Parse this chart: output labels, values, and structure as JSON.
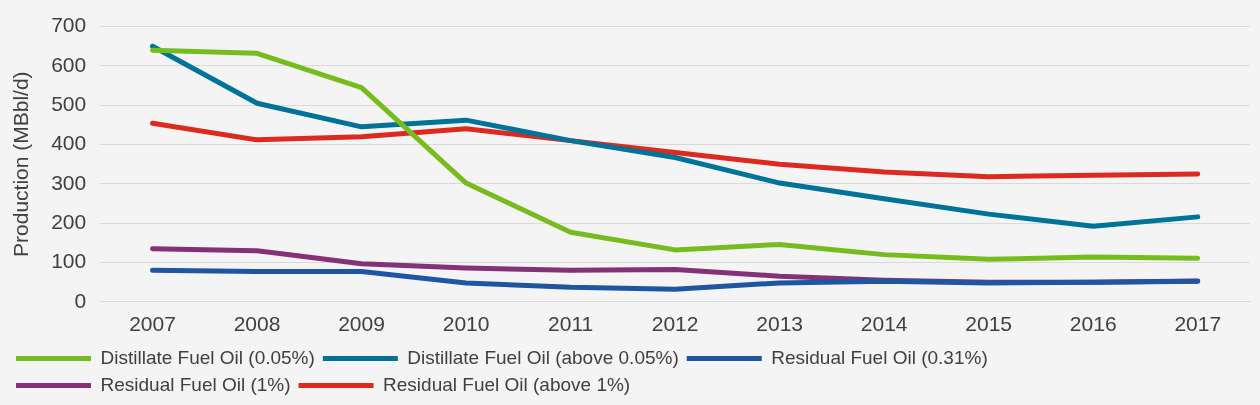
{
  "chart_data": {
    "type": "line",
    "ylabel": "Production (MBbl/d)",
    "categories": [
      "2007",
      "2008",
      "2009",
      "2010",
      "2011",
      "2012",
      "2013",
      "2014",
      "2015",
      "2016",
      "2017"
    ],
    "series": [
      {
        "name": "Distillate Fuel Oil (0.05%)",
        "color": "#77bc1f",
        "values": [
          640,
          632,
          545,
          302,
          177,
          132,
          146,
          120,
          108,
          114,
          111
        ]
      },
      {
        "name": "Distillate Fuel Oil (above 0.05%)",
        "color": "#00739a",
        "values": [
          650,
          505,
          445,
          462,
          410,
          367,
          302,
          262,
          223,
          192,
          216
        ]
      },
      {
        "name": "Residual Fuel Oil (0.31%)",
        "color": "#1f56a3",
        "values": [
          80,
          77,
          77,
          48,
          37,
          32,
          48,
          52,
          48,
          50,
          52
        ]
      },
      {
        "name": "Residual Fuel Oil (1%)",
        "color": "#853178",
        "values": [
          135,
          130,
          97,
          86,
          80,
          82,
          65,
          55,
          50,
          50,
          53
        ]
      },
      {
        "name": "Residual Fuel Oil (above 1%)",
        "color": "#dd2a1f",
        "values": [
          454,
          412,
          420,
          440,
          410,
          380,
          350,
          330,
          318,
          322,
          325
        ]
      }
    ],
    "ylim": [
      0,
      700
    ],
    "yticks": [
      0,
      100,
      200,
      300,
      400,
      500,
      600,
      700
    ],
    "grid": "y",
    "legend": "bottom",
    "marker": "none",
    "line_style": "solid"
  }
}
